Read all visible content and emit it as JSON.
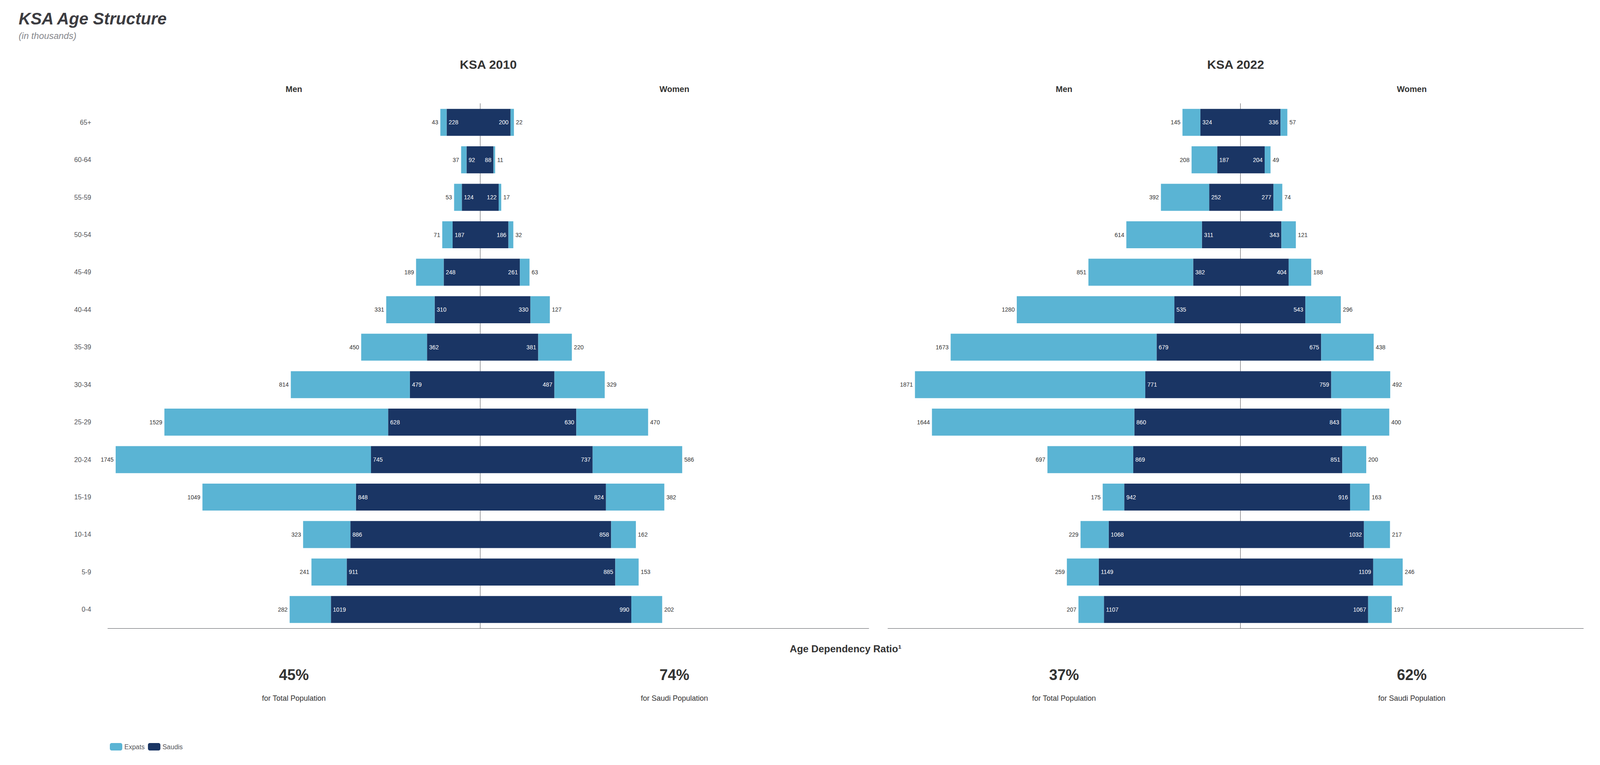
{
  "chart_data": [
    {
      "type": "bar",
      "orientation": "horizontal",
      "stacked": true,
      "data_labels": true,
      "tick_labels": "y",
      "grid": false,
      "legend": "lower left",
      "title": "KSA Age Structure",
      "subtitle": "(in thousands)",
      "xlabel": "Men",
      "annotations": [
        "KSA 2010",
        "45%",
        "for Total Population",
        "Age Dependency Ratio¹"
      ],
      "categories": [
        "65+",
        "60-64",
        "55-59",
        "50-54",
        "45-49",
        "40-44",
        "35-39",
        "30-34",
        "25-29",
        "20-24",
        "15-19",
        "10-14",
        "5-9",
        "0-4"
      ],
      "xlim": [
        2544,
        0
      ],
      "series": [
        {
          "name": "Expats",
          "color": "#5ab4d4",
          "values": [
            43,
            37,
            53,
            71,
            189,
            331,
            450,
            814,
            1529,
            1745,
            1049,
            323,
            241,
            282
          ]
        },
        {
          "name": "Saudis",
          "color": "#1a3564",
          "values": [
            228,
            92,
            124,
            187,
            248,
            310,
            362,
            479,
            628,
            745,
            848,
            886,
            911,
            1019
          ]
        }
      ]
    },
    {
      "type": "bar",
      "orientation": "horizontal",
      "stacked": true,
      "data_labels": true,
      "tick_labels": false,
      "grid": false,
      "xlabel": "Women",
      "annotations": [
        "74%",
        "for Saudi Population"
      ],
      "categories": [
        "65+",
        "60-64",
        "55-59",
        "50-54",
        "45-49",
        "40-44",
        "35-39",
        "30-34",
        "25-29",
        "20-24",
        "15-19",
        "10-14",
        "5-9",
        "0-4"
      ],
      "xlim": [
        0,
        2544
      ],
      "series": [
        {
          "name": "Saudis",
          "color": "#1a3564",
          "values": [
            200,
            88,
            122,
            186,
            261,
            330,
            381,
            487,
            630,
            737,
            824,
            858,
            885,
            990
          ]
        },
        {
          "name": "Expats",
          "color": "#5ab4d4",
          "values": [
            22,
            11,
            17,
            32,
            63,
            127,
            220,
            329,
            470,
            586,
            382,
            162,
            153,
            202
          ]
        }
      ]
    },
    {
      "type": "bar",
      "orientation": "horizontal",
      "stacked": true,
      "data_labels": true,
      "tick_labels": false,
      "grid": false,
      "xlabel": "Men",
      "annotations": [
        "KSA 2022",
        "37%",
        "for Total Population"
      ],
      "categories": [
        "65+",
        "60-64",
        "55-59",
        "50-54",
        "45-49",
        "40-44",
        "35-39",
        "30-34",
        "25-29",
        "20-24",
        "15-19",
        "10-14",
        "5-9",
        "0-4"
      ],
      "xlim": [
        2862,
        0
      ],
      "series": [
        {
          "name": "Expats",
          "color": "#5ab4d4",
          "values": [
            145,
            208,
            392,
            614,
            851,
            1280,
            1673,
            1871,
            1644,
            697,
            175,
            229,
            259,
            207
          ]
        },
        {
          "name": "Saudis",
          "color": "#1a3564",
          "values": [
            324,
            187,
            252,
            311,
            382,
            535,
            679,
            771,
            860,
            869,
            942,
            1068,
            1149,
            1107
          ]
        }
      ]
    },
    {
      "type": "bar",
      "orientation": "horizontal",
      "stacked": true,
      "data_labels": true,
      "tick_labels": false,
      "grid": false,
      "xlabel": "Women",
      "annotations": [
        "62%",
        "for Saudi Population"
      ],
      "categories": [
        "65+",
        "60-64",
        "55-59",
        "50-54",
        "45-49",
        "40-44",
        "35-39",
        "30-34",
        "25-29",
        "20-24",
        "15-19",
        "10-14",
        "5-9",
        "0-4"
      ],
      "xlim": [
        0,
        2862
      ],
      "series": [
        {
          "name": "Saudis",
          "color": "#1a3564",
          "values": [
            336,
            204,
            277,
            343,
            404,
            543,
            675,
            759,
            843,
            851,
            916,
            1032,
            1109,
            1067
          ]
        },
        {
          "name": "Expats",
          "color": "#5ab4d4",
          "values": [
            57,
            49,
            74,
            121,
            188,
            296,
            438,
            492,
            400,
            200,
            163,
            217,
            246,
            197
          ]
        }
      ]
    }
  ]
}
